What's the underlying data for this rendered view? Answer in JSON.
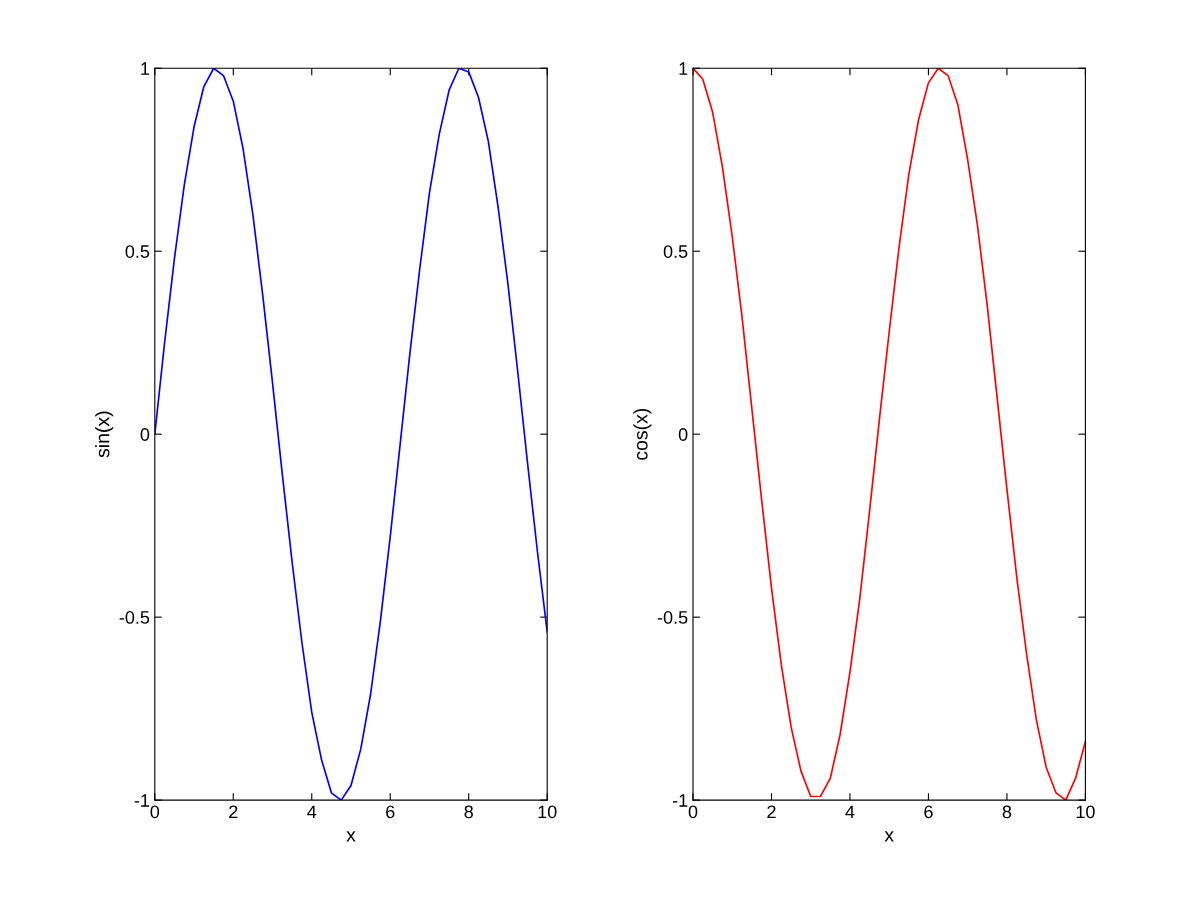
{
  "chart_data": [
    {
      "type": "line",
      "xlabel": "x",
      "ylabel": "sin(x)",
      "xlim": [
        0,
        10
      ],
      "ylim": [
        -1,
        1
      ],
      "xticks": [
        0,
        2,
        4,
        6,
        8,
        10
      ],
      "yticks": [
        -1,
        -0.5,
        0,
        0.5,
        1
      ],
      "grid": false,
      "x": [
        0,
        0.25,
        0.5,
        0.75,
        1,
        1.25,
        1.5,
        1.75,
        2,
        2.25,
        2.5,
        2.75,
        3,
        3.25,
        3.5,
        3.75,
        4,
        4.25,
        4.5,
        4.75,
        5,
        5.25,
        5.5,
        5.75,
        6,
        6.25,
        6.5,
        6.75,
        7,
        7.25,
        7.5,
        7.75,
        8,
        8.25,
        8.5,
        8.75,
        9,
        9.25,
        9.5,
        9.75,
        10
      ],
      "series": [
        {
          "color": "#0000ff",
          "values": [
            0,
            0.25,
            0.48,
            0.68,
            0.84,
            0.95,
            1.0,
            0.98,
            0.91,
            0.78,
            0.6,
            0.38,
            0.14,
            -0.11,
            -0.35,
            -0.57,
            -0.76,
            -0.89,
            -0.98,
            -1.0,
            -0.96,
            -0.86,
            -0.71,
            -0.51,
            -0.28,
            -0.03,
            0.22,
            0.45,
            0.66,
            0.82,
            0.94,
            1.0,
            0.99,
            0.92,
            0.8,
            0.62,
            0.41,
            0.17,
            -0.08,
            -0.32,
            -0.54
          ]
        }
      ]
    },
    {
      "type": "line",
      "xlabel": "x",
      "ylabel": "cos(x)",
      "xlim": [
        0,
        10
      ],
      "ylim": [
        -1,
        1
      ],
      "xticks": [
        0,
        2,
        4,
        6,
        8,
        10
      ],
      "yticks": [
        -1,
        -0.5,
        0,
        0.5,
        1
      ],
      "grid": false,
      "x": [
        0,
        0.25,
        0.5,
        0.75,
        1,
        1.25,
        1.5,
        1.75,
        2,
        2.25,
        2.5,
        2.75,
        3,
        3.25,
        3.5,
        3.75,
        4,
        4.25,
        4.5,
        4.75,
        5,
        5.25,
        5.5,
        5.75,
        6,
        6.25,
        6.5,
        6.75,
        7,
        7.25,
        7.5,
        7.75,
        8,
        8.25,
        8.5,
        8.75,
        9,
        9.25,
        9.5,
        9.75,
        10
      ],
      "series": [
        {
          "color": "#ff0000",
          "values": [
            1,
            0.97,
            0.88,
            0.73,
            0.54,
            0.32,
            0.07,
            -0.18,
            -0.42,
            -0.63,
            -0.8,
            -0.92,
            -0.99,
            -0.99,
            -0.94,
            -0.82,
            -0.65,
            -0.45,
            -0.21,
            0.04,
            0.28,
            0.51,
            0.71,
            0.86,
            0.96,
            1.0,
            0.98,
            0.9,
            0.75,
            0.57,
            0.35,
            0.1,
            -0.15,
            -0.39,
            -0.6,
            -0.78,
            -0.91,
            -0.98,
            -1.0,
            -0.94,
            -0.84
          ]
        }
      ]
    }
  ]
}
